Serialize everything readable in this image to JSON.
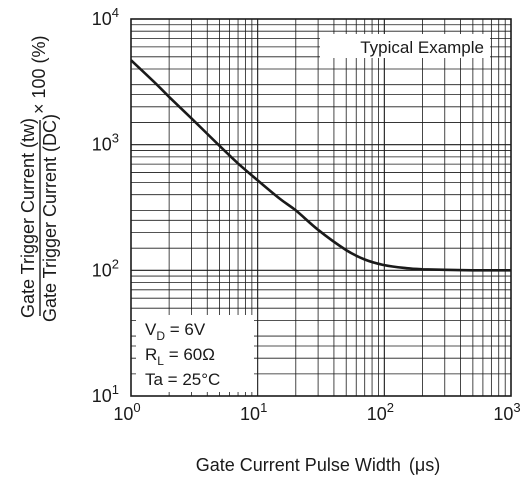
{
  "chart_data": {
    "type": "line",
    "x_scale": "log",
    "y_scale": "log",
    "xlim": [
      1,
      1000
    ],
    "ylim": [
      10,
      10000
    ],
    "grid": true,
    "x_ticks": [
      {
        "base": "10",
        "exp": "0",
        "value": 1
      },
      {
        "base": "10",
        "exp": "1",
        "value": 10
      },
      {
        "base": "10",
        "exp": "2",
        "value": 100
      },
      {
        "base": "10",
        "exp": "3",
        "value": 1000
      }
    ],
    "y_ticks": [
      {
        "base": "10",
        "exp": "1",
        "value": 10
      },
      {
        "base": "10",
        "exp": "2",
        "value": 100
      },
      {
        "base": "10",
        "exp": "3",
        "value": 1000
      },
      {
        "base": "10",
        "exp": "4",
        "value": 10000
      }
    ],
    "xlabel": {
      "text": "Gate Current Pulse Width",
      "unit": "(μs)"
    },
    "ylabel": {
      "numerator": "Gate Trigger Current (tw)",
      "denominator": "Gate Trigger Current (DC)",
      "suffix": "× 100 (%)"
    },
    "series": [
      {
        "x": [
          1,
          1.5,
          2,
          3,
          5,
          7,
          10,
          15,
          20,
          30,
          50,
          70,
          100,
          150,
          200,
          300,
          500,
          700,
          1000
        ],
        "y": [
          4700,
          3200,
          2400,
          1620,
          980,
          710,
          520,
          370,
          300,
          210,
          145,
          122,
          110,
          104,
          102,
          101,
          100,
          100,
          100
        ]
      }
    ],
    "annotations": {
      "typical": "Typical Example",
      "conditions": [
        {
          "label": "V",
          "sub": "D",
          "rest": " = 6V"
        },
        {
          "label": "R",
          "sub": "L",
          "rest": " = 60Ω"
        },
        {
          "label": "Ta = 25°C",
          "sub": "",
          "rest": ""
        }
      ]
    }
  }
}
